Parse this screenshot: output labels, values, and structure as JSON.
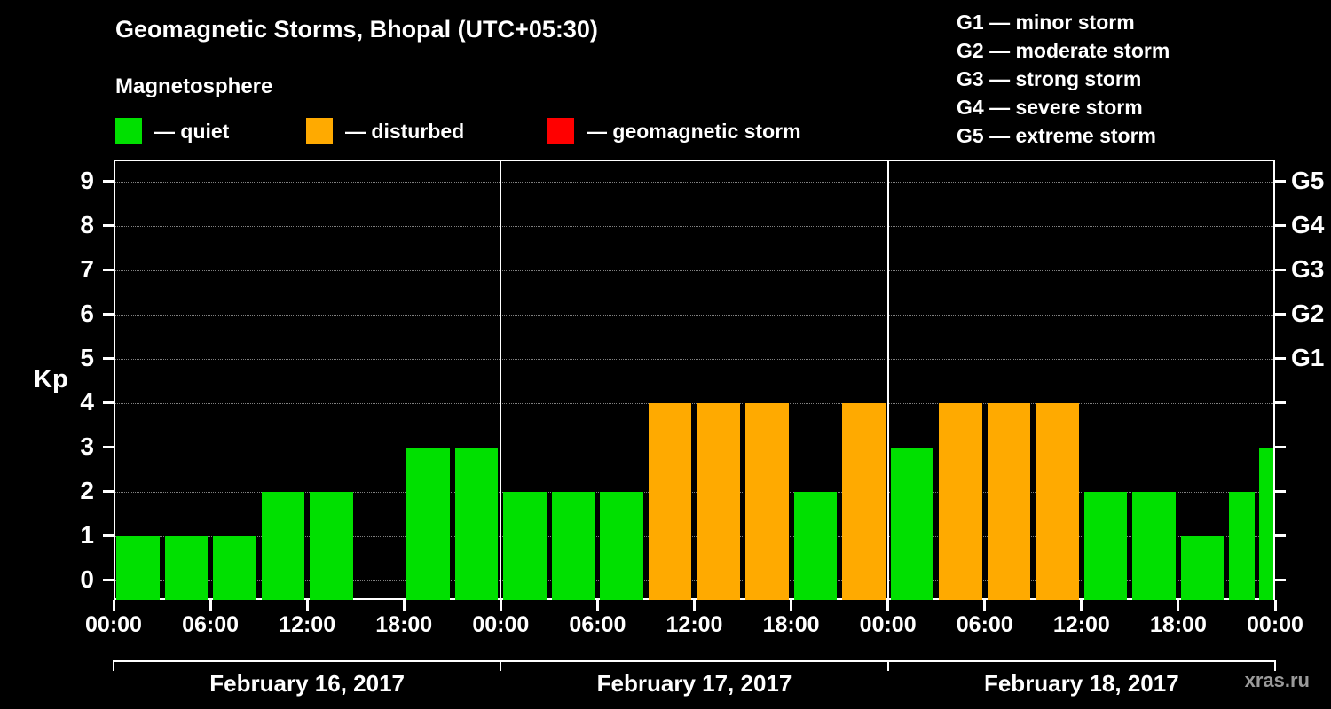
{
  "title": "Geomagnetic Storms, Bhopal (UTC+05:30)",
  "subtitle": "Magnetosphere",
  "watermark": "xras.ru",
  "legend": [
    {
      "label": "— quiet",
      "color": "#00e000"
    },
    {
      "label": "— disturbed",
      "color": "#ffaa00"
    },
    {
      "label": "— geomagnetic storm",
      "color": "#ff0000"
    }
  ],
  "g_scale": [
    {
      "label": "G1 — minor storm"
    },
    {
      "label": "G2 — moderate storm"
    },
    {
      "label": "G3 — strong storm"
    },
    {
      "label": "G4 — severe storm"
    },
    {
      "label": "G5 — extreme storm"
    }
  ],
  "chart_data": {
    "type": "bar",
    "title": "Geomagnetic Storms, Bhopal (UTC+05:30)",
    "ylabel": "Kp",
    "ylim": [
      0,
      9
    ],
    "grid": true,
    "y_ticks": [
      0,
      1,
      2,
      3,
      4,
      5,
      6,
      7,
      8,
      9
    ],
    "right_axis": [
      {
        "kp": 5,
        "label": "G1"
      },
      {
        "kp": 6,
        "label": "G2"
      },
      {
        "kp": 7,
        "label": "G3"
      },
      {
        "kp": 8,
        "label": "G4"
      },
      {
        "kp": 9,
        "label": "G5"
      }
    ],
    "x_tick_labels": [
      "00:00",
      "06:00",
      "12:00",
      "18:00"
    ],
    "x_axis_end_label": "00:00",
    "hours_per_bar": 3,
    "days": [
      {
        "date": "February 16, 2017",
        "values": [
          1,
          1,
          1,
          2,
          2,
          0,
          3,
          3
        ]
      },
      {
        "date": "February 17, 2017",
        "values": [
          2,
          2,
          2,
          4,
          4,
          4,
          2,
          4
        ]
      },
      {
        "date": "February 18, 2017",
        "values": [
          3,
          4,
          4,
          4,
          2,
          2,
          1,
          2
        ]
      }
    ],
    "partial_current_period": {
      "value": 3
    },
    "colors": {
      "quiet": "#00e000",
      "disturbed": "#ffaa00",
      "storm": "#ff0000"
    },
    "color_rule": {
      "quiet_max_kp": 3,
      "disturbed_max_kp": 4,
      "storm_min_kp": 5
    }
  }
}
